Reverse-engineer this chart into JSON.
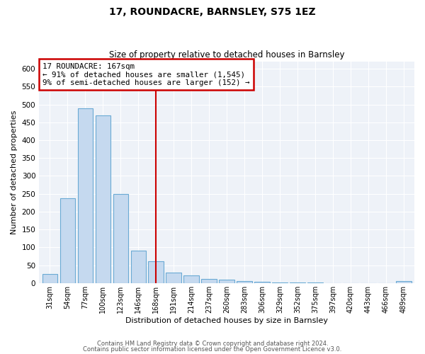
{
  "title": "17, ROUNDACRE, BARNSLEY, S75 1EZ",
  "subtitle": "Size of property relative to detached houses in Barnsley",
  "xlabel": "Distribution of detached houses by size in Barnsley",
  "ylabel": "Number of detached properties",
  "bin_labels": [
    "31sqm",
    "54sqm",
    "77sqm",
    "100sqm",
    "123sqm",
    "146sqm",
    "168sqm",
    "191sqm",
    "214sqm",
    "237sqm",
    "260sqm",
    "283sqm",
    "306sqm",
    "329sqm",
    "352sqm",
    "375sqm",
    "397sqm",
    "420sqm",
    "443sqm",
    "466sqm",
    "489sqm"
  ],
  "bar_values": [
    25,
    237,
    490,
    470,
    250,
    90,
    62,
    30,
    22,
    12,
    10,
    5,
    4,
    2,
    1,
    1,
    0,
    0,
    0,
    0,
    5
  ],
  "bar_color": "#c5d9ef",
  "bar_edge_color": "#6aaad4",
  "vline_x_index": 6,
  "vline_color": "#cc0000",
  "annotation_title": "17 ROUNDACRE: 167sqm",
  "annotation_line1": "← 91% of detached houses are smaller (1,545)",
  "annotation_line2": "9% of semi-detached houses are larger (152) →",
  "annotation_box_color": "#cc0000",
  "ylim": [
    0,
    620
  ],
  "yticks": [
    0,
    50,
    100,
    150,
    200,
    250,
    300,
    350,
    400,
    450,
    500,
    550,
    600
  ],
  "footer1": "Contains HM Land Registry data © Crown copyright and database right 2024.",
  "footer2": "Contains public sector information licensed under the Open Government Licence v3.0.",
  "bg_color": "#ffffff",
  "plot_bg_color": "#eef2f8"
}
